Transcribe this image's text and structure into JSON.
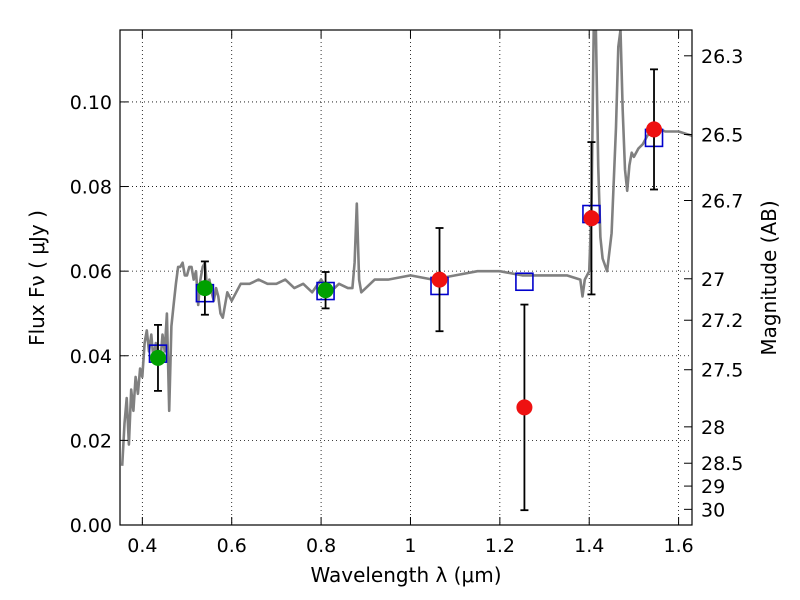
{
  "chart_data": {
    "type": "scatter",
    "title": "",
    "xlabel": "Wavelength  λ (μm)",
    "ylabel": "Flux  Fν  ( μJy )",
    "y2label": "Magnitude (AB)",
    "xlim": [
      0.35,
      1.63
    ],
    "ylim": [
      0.0,
      0.117
    ],
    "grid": true,
    "x_ticks": [
      0.4,
      0.6,
      0.8,
      1.0,
      1.2,
      1.4,
      1.6
    ],
    "x_tick_labels": [
      "0.4",
      "0.6",
      "0.8",
      "1",
      "1.2",
      "1.4",
      "1.6"
    ],
    "y_ticks": [
      0.0,
      0.02,
      0.04,
      0.06,
      0.08,
      0.1
    ],
    "y_tick_labels": [
      "0.00",
      "0.02",
      "0.04",
      "0.06",
      "0.08",
      "0.10"
    ],
    "magnitude_ticks": [
      {
        "label": "26.3",
        "flux": 0.1109
      },
      {
        "label": "26.5",
        "flux": 0.0923
      },
      {
        "label": "26.7",
        "flux": 0.0767
      },
      {
        "label": "27",
        "flux": 0.0582
      },
      {
        "label": "27.2",
        "flux": 0.0484
      },
      {
        "label": "27.5",
        "flux": 0.0367
      },
      {
        "label": "28",
        "flux": 0.0232
      },
      {
        "label": "28.5",
        "flux": 0.0146
      },
      {
        "label": "29",
        "flux": 0.0092
      },
      {
        "label": "30",
        "flux": 0.0037
      }
    ],
    "colors": {
      "model": "#808080",
      "green_points": "#00a000",
      "red_points": "#ee1111",
      "model_photometry": "#0000cc",
      "errorbar": "#000000",
      "grid": "#000000"
    },
    "series": [
      {
        "kind": "line",
        "x": [
          0.355,
          0.36,
          0.365,
          0.37,
          0.375,
          0.38,
          0.385,
          0.39,
          0.395,
          0.4,
          0.405,
          0.41,
          0.415,
          0.42,
          0.425,
          0.43,
          0.435,
          0.44,
          0.445,
          0.45,
          0.455,
          0.46,
          0.465,
          0.47,
          0.475,
          0.48,
          0.485,
          0.49,
          0.495,
          0.5,
          0.505,
          0.51,
          0.515,
          0.52,
          0.525,
          0.53,
          0.535,
          0.54,
          0.545,
          0.55,
          0.555,
          0.56,
          0.565,
          0.57,
          0.575,
          0.58,
          0.59,
          0.6,
          0.62,
          0.64,
          0.66,
          0.68,
          0.7,
          0.72,
          0.74,
          0.76,
          0.78,
          0.8,
          0.82,
          0.84,
          0.86,
          0.87,
          0.875,
          0.88,
          0.885,
          0.89,
          0.9,
          0.92,
          0.95,
          1.0,
          1.05,
          1.1,
          1.15,
          1.2,
          1.25,
          1.3,
          1.35,
          1.38,
          1.385,
          1.39,
          1.4,
          1.405,
          1.41,
          1.415,
          1.42,
          1.425,
          1.43,
          1.44,
          1.45,
          1.46,
          1.465,
          1.47,
          1.475,
          1.48,
          1.485,
          1.49,
          1.495,
          1.5,
          1.51,
          1.52,
          1.53,
          1.55,
          1.57,
          1.6,
          1.63
        ],
        "y": [
          0.014,
          0.024,
          0.03,
          0.019,
          0.032,
          0.027,
          0.035,
          0.031,
          0.037,
          0.035,
          0.043,
          0.046,
          0.041,
          0.045,
          0.039,
          0.043,
          0.041,
          0.038,
          0.045,
          0.041,
          0.05,
          0.027,
          0.047,
          0.052,
          0.057,
          0.061,
          0.061,
          0.062,
          0.059,
          0.059,
          0.061,
          0.061,
          0.058,
          0.06,
          0.052,
          0.058,
          0.061,
          0.062,
          0.056,
          0.058,
          0.055,
          0.053,
          0.056,
          0.054,
          0.05,
          0.049,
          0.055,
          0.053,
          0.057,
          0.057,
          0.058,
          0.057,
          0.057,
          0.058,
          0.056,
          0.057,
          0.055,
          0.058,
          0.055,
          0.057,
          0.056,
          0.056,
          0.062,
          0.076,
          0.058,
          0.055,
          0.056,
          0.058,
          0.058,
          0.059,
          0.058,
          0.059,
          0.06,
          0.06,
          0.059,
          0.059,
          0.059,
          0.058,
          0.054,
          0.058,
          0.06,
          0.075,
          0.117,
          0.117,
          0.085,
          0.068,
          0.063,
          0.06,
          0.069,
          0.094,
          0.113,
          0.117,
          0.098,
          0.084,
          0.079,
          0.085,
          0.088,
          0.087,
          0.089,
          0.09,
          0.092,
          0.094,
          0.093,
          0.093,
          0.092
        ]
      },
      {
        "kind": "observed_green",
        "x": [
          0.435,
          0.54,
          0.81
        ],
        "y": [
          0.0395,
          0.056,
          0.0555
        ],
        "err": [
          0.0078,
          0.0063,
          0.0043
        ]
      },
      {
        "kind": "observed_red",
        "x": [
          1.065,
          1.255,
          1.405,
          1.545
        ],
        "y": [
          0.058,
          0.0278,
          0.0725,
          0.0935
        ],
        "err": [
          0.0122,
          0.0243,
          0.018,
          0.0142
        ]
      },
      {
        "kind": "model_photometry",
        "x": [
          0.435,
          0.54,
          0.81,
          1.065,
          1.255,
          1.405,
          1.545
        ],
        "y": [
          0.0405,
          0.0548,
          0.0553,
          0.0565,
          0.0575,
          0.0735,
          0.0915
        ]
      }
    ]
  }
}
